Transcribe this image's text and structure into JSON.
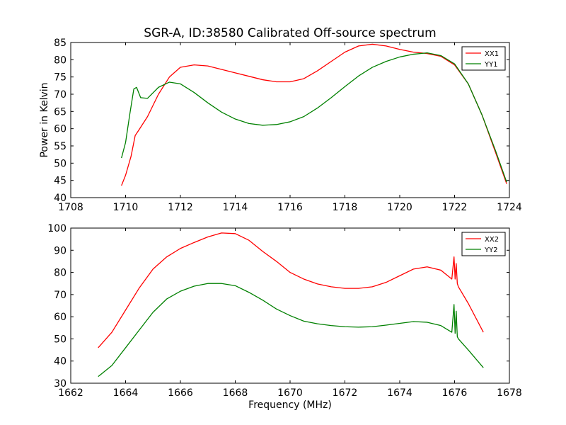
{
  "chart_data": [
    {
      "type": "line",
      "title": "SGR-A, ID:38580 Calibrated Off-source spectrum",
      "xlabel": "",
      "ylabel": "Power in Kelvin",
      "xlim": [
        1708,
        1724
      ],
      "ylim": [
        40,
        85
      ],
      "xticks": [
        1708,
        1710,
        1712,
        1714,
        1716,
        1718,
        1720,
        1722,
        1724
      ],
      "yticks": [
        40,
        45,
        50,
        55,
        60,
        65,
        70,
        75,
        80,
        85
      ],
      "grid": false,
      "legend": "top-right",
      "series": [
        {
          "name": "XX1",
          "color": "#ff0000",
          "x": [
            1709.85,
            1710.0,
            1710.2,
            1710.35,
            1710.5,
            1710.8,
            1711.2,
            1711.6,
            1712.0,
            1712.5,
            1713.0,
            1713.5,
            1714.0,
            1714.5,
            1715.0,
            1715.5,
            1716.0,
            1716.5,
            1717.0,
            1717.5,
            1718.0,
            1718.5,
            1719.0,
            1719.5,
            1720.0,
            1720.5,
            1721.0,
            1721.5,
            1722.0,
            1722.5,
            1723.0,
            1723.5,
            1723.9
          ],
          "y": [
            43.5,
            46.5,
            52.0,
            58.0,
            59.8,
            63.5,
            70.0,
            75.0,
            77.8,
            78.5,
            78.2,
            77.2,
            76.2,
            75.2,
            74.2,
            73.6,
            73.6,
            74.5,
            76.8,
            79.5,
            82.2,
            84.0,
            84.5,
            84.0,
            83.0,
            82.2,
            81.8,
            81.0,
            78.5,
            73.0,
            64.0,
            53.0,
            44.0
          ]
        },
        {
          "name": "YY1",
          "color": "#008000",
          "x": [
            1709.85,
            1710.0,
            1710.15,
            1710.3,
            1710.4,
            1710.55,
            1710.8,
            1711.2,
            1711.6,
            1712.0,
            1712.5,
            1713.0,
            1713.5,
            1714.0,
            1714.5,
            1715.0,
            1715.5,
            1716.0,
            1716.5,
            1717.0,
            1717.5,
            1718.0,
            1718.5,
            1719.0,
            1719.5,
            1720.0,
            1720.5,
            1721.0,
            1721.5,
            1722.0,
            1722.5,
            1723.0,
            1723.5,
            1723.9
          ],
          "y": [
            51.5,
            56.0,
            64.0,
            71.5,
            72.0,
            69.0,
            68.8,
            72.0,
            73.5,
            73.0,
            70.5,
            67.5,
            64.8,
            62.8,
            61.5,
            61.0,
            61.2,
            62.0,
            63.5,
            66.0,
            69.0,
            72.2,
            75.3,
            77.8,
            79.5,
            80.8,
            81.6,
            82.0,
            81.2,
            78.8,
            73.0,
            64.0,
            53.5,
            44.5
          ]
        }
      ]
    },
    {
      "type": "line",
      "title": "",
      "xlabel": "Frequency (MHz)",
      "ylabel": "",
      "xlim": [
        1662,
        1678
      ],
      "ylim": [
        30,
        100
      ],
      "xticks": [
        1662,
        1664,
        1666,
        1668,
        1670,
        1672,
        1674,
        1676,
        1678
      ],
      "yticks": [
        30,
        40,
        50,
        60,
        70,
        80,
        90,
        100
      ],
      "grid": false,
      "legend": "top-right",
      "series": [
        {
          "name": "XX2",
          "color": "#ff0000",
          "x": [
            1663.0,
            1663.5,
            1664.0,
            1664.5,
            1665.0,
            1665.5,
            1666.0,
            1666.5,
            1667.0,
            1667.5,
            1668.0,
            1668.5,
            1669.0,
            1669.5,
            1670.0,
            1670.5,
            1671.0,
            1671.5,
            1672.0,
            1672.5,
            1673.0,
            1673.5,
            1674.0,
            1674.5,
            1675.0,
            1675.5,
            1675.9,
            1675.98,
            1676.02,
            1676.06,
            1676.1,
            1676.14,
            1676.5,
            1677.05
          ],
          "y": [
            46.0,
            53.0,
            63.0,
            73.0,
            81.5,
            87.0,
            90.8,
            93.5,
            96.0,
            97.8,
            97.5,
            94.5,
            89.5,
            85.0,
            80.0,
            77.0,
            74.8,
            73.5,
            72.8,
            72.8,
            73.5,
            75.5,
            78.5,
            81.5,
            82.5,
            81.0,
            77.0,
            87.0,
            77.0,
            84.0,
            75.0,
            73.5,
            66.0,
            53.0
          ]
        },
        {
          "name": "YY2",
          "color": "#008000",
          "x": [
            1663.0,
            1663.5,
            1664.0,
            1664.5,
            1665.0,
            1665.5,
            1666.0,
            1666.5,
            1667.0,
            1667.5,
            1668.0,
            1668.5,
            1669.0,
            1669.5,
            1670.0,
            1670.5,
            1671.0,
            1671.5,
            1672.0,
            1672.5,
            1673.0,
            1673.5,
            1674.0,
            1674.5,
            1675.0,
            1675.5,
            1675.9,
            1675.98,
            1676.02,
            1676.06,
            1676.1,
            1676.14,
            1676.5,
            1677.05
          ],
          "y": [
            33.0,
            38.0,
            46.0,
            54.0,
            62.0,
            68.0,
            71.5,
            73.8,
            75.0,
            75.0,
            74.0,
            71.0,
            67.5,
            63.5,
            60.5,
            58.0,
            56.8,
            56.0,
            55.5,
            55.3,
            55.5,
            56.2,
            57.0,
            57.8,
            57.5,
            56.0,
            53.0,
            65.5,
            52.5,
            62.5,
            51.0,
            50.0,
            45.0,
            37.0
          ]
        }
      ]
    }
  ]
}
